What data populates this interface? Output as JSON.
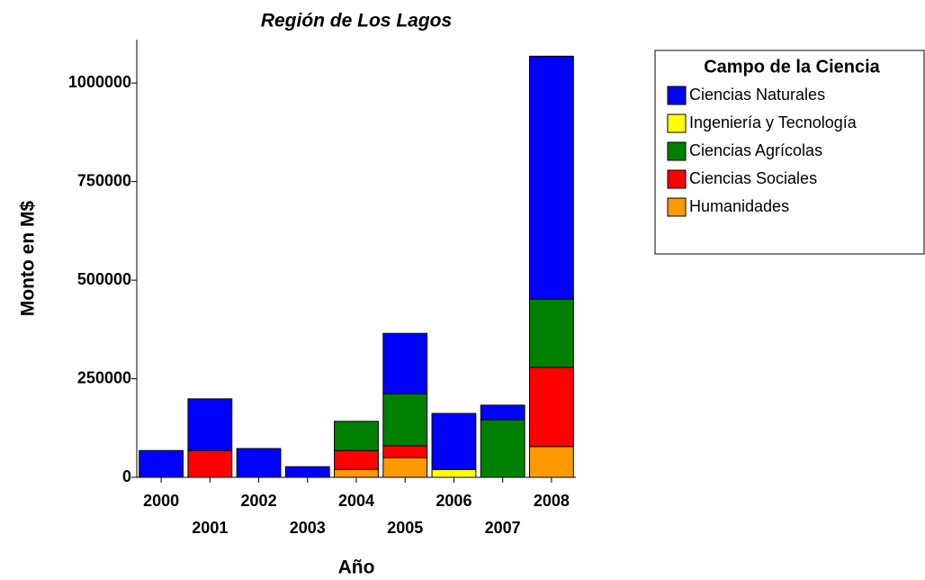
{
  "chart_data": {
    "type": "stacked_bar",
    "title": "Región de Los Lagos",
    "x_label": "Año",
    "y_label": "Monto en M$",
    "categories": [
      "2000",
      "2001",
      "2002",
      "2003",
      "2004",
      "2005",
      "2006",
      "2007",
      "2008"
    ],
    "series": [
      {
        "name": "Ciencias Naturales",
        "color": "#0000ff",
        "values": [
          68000,
          131000,
          73000,
          27000,
          null,
          153000,
          142000,
          37000,
          616000
        ]
      },
      {
        "name": "Ingeniería y Tecnología",
        "color": "#ffff00",
        "values": [
          null,
          null,
          null,
          null,
          null,
          null,
          20000,
          null,
          null
        ]
      },
      {
        "name": "Ciencias Agrícolas",
        "color": "#008000",
        "values": [
          null,
          null,
          null,
          null,
          74000,
          132000,
          null,
          146000,
          173000
        ]
      },
      {
        "name": "Ciencias Sociales",
        "color": "#ff0000",
        "values": [
          null,
          68000,
          null,
          null,
          48000,
          30000,
          null,
          null,
          201000
        ]
      },
      {
        "name": "Humanidades",
        "color": "#ff9900",
        "values": [
          null,
          null,
          null,
          null,
          20000,
          50000,
          null,
          null,
          78000
        ]
      }
    ],
    "legend_title": "Campo de la Ciencia",
    "ylim": [
      0,
      1110000
    ],
    "yticks": [
      0,
      250000,
      500000,
      750000,
      1000000
    ]
  }
}
